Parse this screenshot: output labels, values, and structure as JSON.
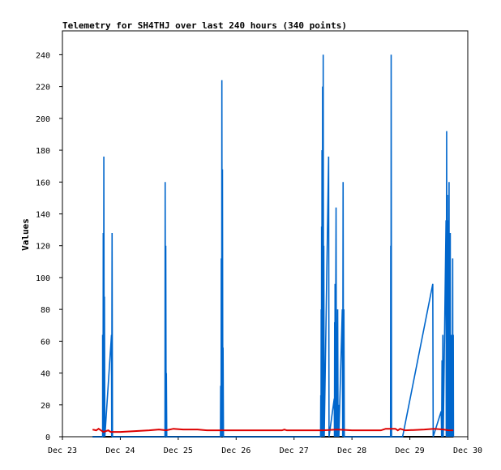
{
  "chart_data": {
    "type": "line",
    "title": "Telemetry for SH4THJ over last 240 hours (340 points)",
    "xlabel": "",
    "ylabel": "Values",
    "x_tick_labels": [
      "Dec 23",
      "Dec 24",
      "Dec 25",
      "Dec 26",
      "Dec 27",
      "Dec 28",
      "Dec 29",
      "Dec 30"
    ],
    "y_ticks": [
      0,
      20,
      40,
      60,
      80,
      100,
      120,
      140,
      160,
      180,
      200,
      220,
      240
    ],
    "xlim": [
      "Dec 23 00:00",
      "Dec 30 00:00"
    ],
    "ylim": [
      0,
      255
    ],
    "grid": false,
    "legend": "none",
    "series": [
      {
        "color": "#0066cc",
        "style": "line",
        "points": [
          [
            "Dec 23 12:30",
            0
          ],
          [
            "Dec 23 16:40",
            0
          ],
          [
            "Dec 23 16:40",
            64
          ],
          [
            "Dec 23 16:50",
            0
          ],
          [
            "Dec 23 16:55",
            128
          ],
          [
            "Dec 23 17:05",
            0
          ],
          [
            "Dec 23 17:10",
            176
          ],
          [
            "Dec 23 17:20",
            0
          ],
          [
            "Dec 23 17:25",
            88
          ],
          [
            "Dec 23 17:35",
            0
          ],
          [
            "Dec 23 20:20",
            64
          ],
          [
            "Dec 23 20:25",
            0
          ],
          [
            "Dec 23 20:35",
            128
          ],
          [
            "Dec 23 20:45",
            0
          ],
          [
            "Dec 24 18:30",
            0
          ],
          [
            "Dec 24 18:35",
            160
          ],
          [
            "Dec 24 18:45",
            0
          ],
          [
            "Dec 24 18:50",
            120
          ],
          [
            "Dec 24 19:00",
            0
          ],
          [
            "Dec 24 19:05",
            40
          ],
          [
            "Dec 24 19:15",
            0
          ],
          [
            "Dec 25 17:30",
            0
          ],
          [
            "Dec 25 17:35",
            32
          ],
          [
            "Dec 25 17:45",
            0
          ],
          [
            "Dec 25 17:50",
            112
          ],
          [
            "Dec 25 18:00",
            0
          ],
          [
            "Dec 25 18:05",
            224
          ],
          [
            "Dec 25 18:15",
            0
          ],
          [
            "Dec 25 18:20",
            168
          ],
          [
            "Dec 25 18:30",
            0
          ],
          [
            "Dec 25 18:35",
            56
          ],
          [
            "Dec 25 18:45",
            0
          ],
          [
            "Dec 27 11:00",
            0
          ],
          [
            "Dec 27 11:05",
            26
          ],
          [
            "Dec 27 11:10",
            0
          ],
          [
            "Dec 27 11:15",
            80
          ],
          [
            "Dec 27 11:20",
            0
          ],
          [
            "Dec 27 11:25",
            132
          ],
          [
            "Dec 27 11:30",
            0
          ],
          [
            "Dec 27 11:35",
            180
          ],
          [
            "Dec 27 11:45",
            0
          ],
          [
            "Dec 27 11:50",
            220
          ],
          [
            "Dec 27 12:00",
            0
          ],
          [
            "Dec 27 12:05",
            240
          ],
          [
            "Dec 27 12:15",
            0
          ],
          [
            "Dec 27 12:20",
            120
          ],
          [
            "Dec 27 12:30",
            0
          ],
          [
            "Dec 27 14:20",
            176
          ],
          [
            "Dec 27 14:30",
            0
          ],
          [
            "Dec 27 16:40",
            24
          ],
          [
            "Dec 27 16:45",
            0
          ],
          [
            "Dec 27 16:50",
            72
          ],
          [
            "Dec 27 16:55",
            0
          ],
          [
            "Dec 27 17:00",
            96
          ],
          [
            "Dec 27 17:05",
            0
          ],
          [
            "Dec 27 17:25",
            144
          ],
          [
            "Dec 27 17:35",
            0
          ],
          [
            "Dec 27 17:45",
            60
          ],
          [
            "Dec 27 17:50",
            0
          ],
          [
            "Dec 27 18:05",
            80
          ],
          [
            "Dec 27 18:15",
            0
          ],
          [
            "Dec 27 18:30",
            20
          ],
          [
            "Dec 27 18:35",
            0
          ],
          [
            "Dec 27 20:00",
            80
          ],
          [
            "Dec 27 20:10",
            0
          ],
          [
            "Dec 27 20:20",
            160
          ],
          [
            "Dec 27 20:30",
            0
          ],
          [
            "Dec 27 20:40",
            80
          ],
          [
            "Dec 27 20:50",
            0
          ],
          [
            "Dec 28 16:00",
            0
          ],
          [
            "Dec 28 16:05",
            120
          ],
          [
            "Dec 28 16:10",
            0
          ],
          [
            "Dec 28 16:15",
            240
          ],
          [
            "Dec 28 16:25",
            0
          ],
          [
            "Dec 28 21:00",
            0
          ],
          [
            "Dec 29 09:30",
            96
          ],
          [
            "Dec 29 09:40",
            0
          ],
          [
            "Dec 29 13:00",
            16
          ],
          [
            "Dec 29 13:10",
            0
          ],
          [
            "Dec 29 13:20",
            48
          ],
          [
            "Dec 29 13:30",
            0
          ],
          [
            "Dec 29 13:40",
            64
          ],
          [
            "Dec 29 13:50",
            0
          ],
          [
            "Dec 29 15:00",
            136
          ],
          [
            "Dec 29 15:05",
            0
          ],
          [
            "Dec 29 15:15",
            192
          ],
          [
            "Dec 29 15:25",
            0
          ],
          [
            "Dec 29 15:35",
            152
          ],
          [
            "Dec 29 15:40",
            0
          ],
          [
            "Dec 29 15:45",
            96
          ],
          [
            "Dec 29 15:50",
            0
          ],
          [
            "Dec 29 16:00",
            136
          ],
          [
            "Dec 29 16:05",
            0
          ],
          [
            "Dec 29 16:15",
            160
          ],
          [
            "Dec 29 16:20",
            0
          ],
          [
            "Dec 29 16:30",
            80
          ],
          [
            "Dec 29 16:35",
            0
          ],
          [
            "Dec 29 16:45",
            128
          ],
          [
            "Dec 29 16:50",
            0
          ],
          [
            "Dec 29 17:00",
            64
          ],
          [
            "Dec 29 17:05",
            0
          ],
          [
            "Dec 29 17:15",
            64
          ],
          [
            "Dec 29 17:20",
            0
          ],
          [
            "Dec 29 17:30",
            64
          ],
          [
            "Dec 29 17:35",
            0
          ],
          [
            "Dec 29 17:45",
            112
          ],
          [
            "Dec 29 17:50",
            0
          ],
          [
            "Dec 29 18:00",
            64
          ],
          [
            "Dec 29 18:05",
            0
          ]
        ]
      },
      {
        "color": "#dd0000",
        "style": "line",
        "points": [
          [
            "Dec 23 12:30",
            4.5
          ],
          [
            "Dec 23 14:00",
            4
          ],
          [
            "Dec 23 15:00",
            5
          ],
          [
            "Dec 23 16:00",
            4
          ],
          [
            "Dec 23 17:00",
            3
          ],
          [
            "Dec 23 19:00",
            4
          ],
          [
            "Dec 23 20:00",
            3
          ],
          [
            "Dec 24 00:00",
            3
          ],
          [
            "Dec 24 06:00",
            3.5
          ],
          [
            "Dec 24 12:00",
            4
          ],
          [
            "Dec 24 16:00",
            4.5
          ],
          [
            "Dec 24 19:00",
            4
          ],
          [
            "Dec 24 22:00",
            5
          ],
          [
            "Dec 25 02:00",
            4.5
          ],
          [
            "Dec 25 08:00",
            4.5
          ],
          [
            "Dec 25 12:00",
            4
          ],
          [
            "Dec 26 00:00",
            4
          ],
          [
            "Dec 26 12:00",
            4
          ],
          [
            "Dec 26 19:00",
            4
          ],
          [
            "Dec 26 20:00",
            4.5
          ],
          [
            "Dec 26 21:00",
            4
          ],
          [
            "Dec 27 12:00",
            4
          ],
          [
            "Dec 27 18:00",
            4.5
          ],
          [
            "Dec 28 00:00",
            4
          ],
          [
            "Dec 28 12:00",
            4
          ],
          [
            "Dec 28 14:00",
            5
          ],
          [
            "Dec 28 18:00",
            5
          ],
          [
            "Dec 28 19:00",
            4
          ],
          [
            "Dec 28 20:00",
            5
          ],
          [
            "Dec 28 22:00",
            4
          ],
          [
            "Dec 29 06:00",
            4.5
          ],
          [
            "Dec 29 10:00",
            5
          ],
          [
            "Dec 29 14:00",
            4.5
          ],
          [
            "Dec 29 16:00",
            4
          ],
          [
            "Dec 29 18:00",
            4
          ]
        ]
      }
    ]
  }
}
